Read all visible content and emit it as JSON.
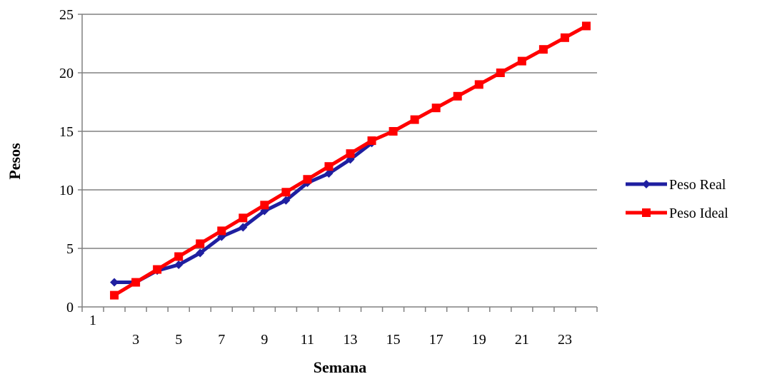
{
  "chart_data": {
    "type": "line",
    "title": "",
    "xlabel": "Semana",
    "ylabel": "Pesos",
    "x": [
      1,
      2,
      3,
      4,
      5,
      6,
      7,
      8,
      9,
      10,
      11,
      12,
      13,
      14,
      15,
      16,
      17,
      18,
      19,
      20,
      21,
      22,
      23,
      24
    ],
    "x_tick_labels": [
      "1",
      "3",
      "5",
      "7",
      "9",
      "11",
      "13",
      "15",
      "17",
      "19",
      "21",
      "23"
    ],
    "y_ticks": [
      0,
      5,
      10,
      15,
      20,
      25
    ],
    "ylim": [
      0,
      25
    ],
    "grid": "horizontal",
    "legend_position": "right",
    "series": [
      {
        "name": "Peso Real",
        "color": "#1f1fa0",
        "marker": "diamond",
        "x": [
          2,
          3,
          4,
          5,
          6,
          7,
          8,
          9,
          10,
          11,
          12,
          13,
          14
        ],
        "values": [
          2.1,
          2.1,
          3.1,
          3.6,
          4.6,
          6.0,
          6.8,
          8.2,
          9.1,
          10.6,
          11.4,
          12.6,
          14.0
        ]
      },
      {
        "name": "Peso Ideal",
        "color": "#ff0000",
        "marker": "square",
        "x": [
          2,
          3,
          4,
          5,
          6,
          7,
          8,
          9,
          10,
          11,
          12,
          13,
          14,
          15,
          16,
          17,
          18,
          19,
          20,
          21,
          22,
          23,
          24
        ],
        "values": [
          1.0,
          2.1,
          3.2,
          4.3,
          5.4,
          6.5,
          7.6,
          8.7,
          9.8,
          10.9,
          12.0,
          13.1,
          14.2,
          15.0,
          16.0,
          17.0,
          18.0,
          19.0,
          20.0,
          21.0,
          22.0,
          23.0,
          24.0
        ]
      }
    ]
  }
}
